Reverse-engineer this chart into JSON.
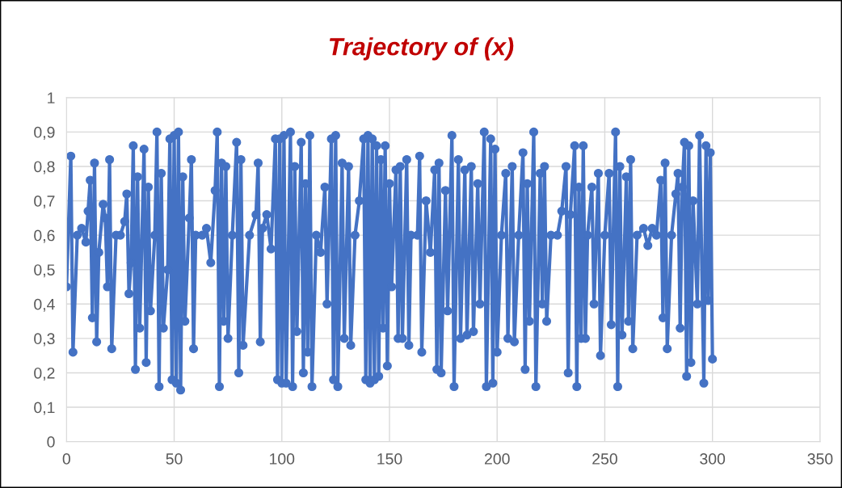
{
  "chart_data": {
    "type": "line",
    "title": "Trajectory of (x)",
    "xlim": [
      0,
      350
    ],
    "xticks": [
      0,
      50,
      100,
      150,
      200,
      250,
      300,
      350
    ],
    "ylim": [
      0,
      1
    ],
    "yticks": [
      {
        "value": 0,
        "label": "0"
      },
      {
        "value": 0.1,
        "label": "0,1"
      },
      {
        "value": 0.2,
        "label": "0,2"
      },
      {
        "value": 0.3,
        "label": "0,3"
      },
      {
        "value": 0.4,
        "label": "0,4"
      },
      {
        "value": 0.5,
        "label": "0,5"
      },
      {
        "value": 0.6,
        "label": "0,6"
      },
      {
        "value": 0.7,
        "label": "0,7"
      },
      {
        "value": 0.8,
        "label": "0,8"
      },
      {
        "value": 0.9,
        "label": "0,9"
      },
      {
        "value": 1,
        "label": "1"
      }
    ],
    "grid": true,
    "marker": "circle",
    "line_style": "solid",
    "series": [
      {
        "color": "#4472c4",
        "x": [
          0,
          2,
          3,
          5,
          7,
          9,
          10,
          11,
          12,
          13,
          14,
          15,
          17,
          18,
          19,
          20,
          21,
          23,
          25,
          27,
          28,
          29,
          30,
          31,
          32,
          33,
          34,
          36,
          37,
          38,
          39,
          41,
          42,
          43,
          44,
          45,
          47,
          48,
          49,
          50,
          51,
          52,
          53,
          54,
          55,
          57,
          58,
          59,
          60,
          63,
          65,
          67,
          69,
          70,
          71,
          72,
          73,
          74,
          75,
          77,
          79,
          80,
          81,
          82,
          85,
          88,
          89,
          90,
          91,
          93,
          95,
          97,
          98,
          99,
          100,
          101,
          102,
          104,
          105,
          106,
          107,
          109,
          110,
          111,
          112,
          113,
          114,
          116,
          118,
          120,
          121,
          123,
          124,
          125,
          126,
          128,
          129,
          131,
          132,
          134,
          136,
          138,
          139,
          140,
          141,
          142,
          143,
          144,
          145,
          146,
          147,
          148,
          149,
          150,
          151,
          153,
          154,
          155,
          156,
          158,
          159,
          160,
          163,
          164,
          165,
          167,
          169,
          171,
          172,
          173,
          174,
          176,
          177,
          179,
          180,
          182,
          183,
          185,
          186,
          188,
          189,
          191,
          192,
          194,
          195,
          197,
          198,
          199,
          200,
          202,
          204,
          205,
          207,
          208,
          210,
          212,
          213,
          214,
          215,
          217,
          218,
          220,
          221,
          222,
          223,
          225,
          228,
          230,
          232,
          233,
          234,
          236,
          237,
          238,
          239,
          240,
          241,
          242,
          244,
          245,
          247,
          248,
          250,
          252,
          253,
          255,
          256,
          257,
          258,
          260,
          261,
          262,
          263,
          265,
          268,
          270,
          272,
          274,
          276,
          277,
          278,
          279,
          281,
          283,
          284,
          285,
          286,
          287,
          288,
          289,
          290,
          291,
          293,
          294,
          296,
          297,
          298,
          299,
          300
        ],
        "values": [
          0.45,
          0.83,
          0.26,
          0.6,
          0.62,
          0.58,
          0.67,
          0.76,
          0.36,
          0.81,
          0.29,
          0.55,
          0.69,
          0.65,
          0.45,
          0.82,
          0.27,
          0.6,
          0.6,
          0.64,
          0.72,
          0.43,
          0.52,
          0.86,
          0.21,
          0.77,
          0.33,
          0.85,
          0.23,
          0.74,
          0.38,
          0.6,
          0.9,
          0.16,
          0.78,
          0.33,
          0.5,
          0.88,
          0.18,
          0.89,
          0.17,
          0.9,
          0.15,
          0.77,
          0.35,
          0.65,
          0.82,
          0.27,
          0.6,
          0.6,
          0.62,
          0.52,
          0.73,
          0.9,
          0.16,
          0.81,
          0.35,
          0.8,
          0.3,
          0.6,
          0.87,
          0.2,
          0.82,
          0.28,
          0.6,
          0.66,
          0.81,
          0.29,
          0.62,
          0.66,
          0.56,
          0.88,
          0.18,
          0.88,
          0.17,
          0.89,
          0.17,
          0.9,
          0.16,
          0.8,
          0.32,
          0.87,
          0.2,
          0.75,
          0.26,
          0.89,
          0.16,
          0.6,
          0.55,
          0.74,
          0.4,
          0.88,
          0.18,
          0.89,
          0.16,
          0.81,
          0.3,
          0.8,
          0.28,
          0.6,
          0.7,
          0.88,
          0.18,
          0.89,
          0.17,
          0.88,
          0.18,
          0.86,
          0.19,
          0.82,
          0.33,
          0.86,
          0.22,
          0.75,
          0.45,
          0.79,
          0.3,
          0.8,
          0.3,
          0.82,
          0.28,
          0.6,
          0.6,
          0.83,
          0.26,
          0.7,
          0.55,
          0.79,
          0.21,
          0.81,
          0.2,
          0.73,
          0.38,
          0.89,
          0.16,
          0.82,
          0.3,
          0.79,
          0.31,
          0.8,
          0.32,
          0.75,
          0.4,
          0.9,
          0.16,
          0.88,
          0.17,
          0.85,
          0.26,
          0.6,
          0.78,
          0.3,
          0.8,
          0.29,
          0.6,
          0.84,
          0.21,
          0.75,
          0.35,
          0.9,
          0.16,
          0.78,
          0.4,
          0.8,
          0.35,
          0.6,
          0.6,
          0.67,
          0.8,
          0.2,
          0.66,
          0.86,
          0.16,
          0.74,
          0.3,
          0.86,
          0.3,
          0.6,
          0.74,
          0.4,
          0.78,
          0.25,
          0.6,
          0.78,
          0.34,
          0.9,
          0.16,
          0.8,
          0.31,
          0.77,
          0.35,
          0.82,
          0.27,
          0.6,
          0.62,
          0.57,
          0.62,
          0.6,
          0.76,
          0.36,
          0.81,
          0.27,
          0.6,
          0.72,
          0.78,
          0.33,
          0.74,
          0.87,
          0.19,
          0.86,
          0.23,
          0.7,
          0.4,
          0.89,
          0.17,
          0.86,
          0.41,
          0.84,
          0.24
        ]
      }
    ]
  }
}
